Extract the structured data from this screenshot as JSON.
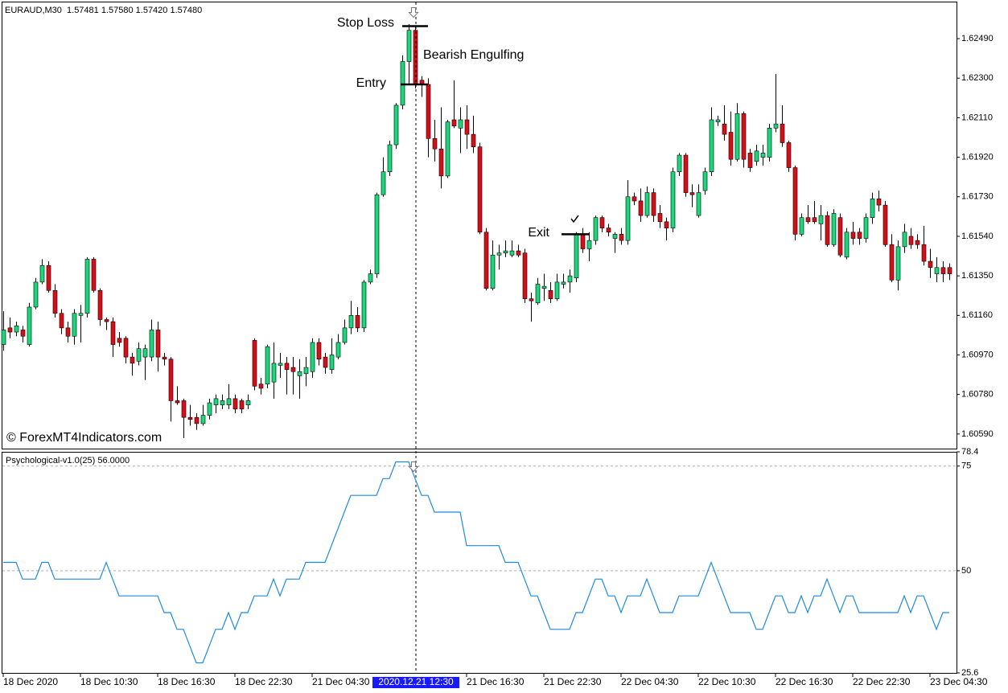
{
  "chart_data": [
    {
      "type": "candlestick",
      "header": "EURAUD,M30  1.57481 1.57580 1.57420 1.57480",
      "watermark": "© ForexMT4Indicators.com",
      "up_color": "#1ed67c",
      "down_color": "#d4111b",
      "ylim": [
        1.6052,
        1.62664
      ],
      "yticks": [
        {
          "value": 1.6249,
          "label": "1.62490"
        },
        {
          "value": 1.623,
          "label": "1.62300"
        },
        {
          "value": 1.6211,
          "label": "1.62110"
        },
        {
          "value": 1.6192,
          "label": "1.61920"
        },
        {
          "value": 1.6173,
          "label": "1.61730"
        },
        {
          "value": 1.6154,
          "label": "1.61540"
        },
        {
          "value": 1.6135,
          "label": "1.61350"
        },
        {
          "value": 1.6116,
          "label": "1.61160"
        },
        {
          "value": 1.6097,
          "label": "1.60970"
        },
        {
          "value": 1.6078,
          "label": "1.60780"
        },
        {
          "value": 1.6059,
          "label": "1.60590"
        }
      ],
      "crosshair": "2020.12.21 12:30",
      "annotations": [
        {
          "text": "Stop Loss",
          "value": 1.6255
        },
        {
          "text": "Bearish Engulfing"
        },
        {
          "text": "Entry",
          "value": 1.6227
        },
        {
          "text": "Exit",
          "value": 1.6155
        }
      ],
      "categories": [
        "18 Dec 2020",
        null,
        null,
        null,
        null,
        null,
        null,
        null,
        null,
        null,
        null,
        null,
        "18 Dec 10:30",
        null,
        null,
        null,
        null,
        null,
        null,
        null,
        null,
        null,
        null,
        null,
        "18 Dec 16:30",
        null,
        null,
        null,
        null,
        null,
        null,
        null,
        null,
        null,
        null,
        null,
        "18 Dec 22:30",
        null,
        null,
        null,
        null,
        null,
        null,
        null,
        null,
        null,
        null,
        null,
        "21 Dec 04:30",
        null,
        null,
        null,
        null,
        null,
        null,
        null,
        null,
        null,
        null,
        null,
        null,
        null,
        null,
        null,
        "2020.12.21 12:30",
        null,
        null,
        null,
        null,
        null,
        null,
        null,
        "21 Dec 16:30",
        null,
        null,
        null,
        null,
        null,
        null,
        null,
        null,
        null,
        null,
        null,
        "21 Dec 22:30",
        null,
        null,
        null,
        null,
        null,
        null,
        null,
        null,
        null,
        null,
        null,
        "22 Dec 04:30",
        null,
        null,
        null,
        null,
        null,
        null,
        null,
        null,
        null,
        null,
        null,
        "22 Dec 10:30",
        null,
        null,
        null,
        null,
        null,
        null,
        null,
        null,
        null,
        null,
        null,
        "22 Dec 16:30",
        null,
        null,
        null,
        null,
        null,
        null,
        null,
        null,
        null,
        null,
        null,
        "22 Dec 22:30",
        null,
        null,
        null,
        null,
        null,
        null,
        null,
        null,
        null,
        null,
        null,
        "23 Dec 04:30",
        null,
        null,
        null
      ],
      "values": [
        [
          1.6102,
          1.6118,
          1.6099,
          1.6109
        ],
        [
          1.611,
          1.6115,
          1.6105,
          1.6108
        ],
        [
          1.6108,
          1.6113,
          1.6106,
          1.6111
        ],
        [
          1.6109,
          1.6111,
          1.6103,
          1.6106
        ],
        [
          1.6102,
          1.6122,
          1.6101,
          1.612
        ],
        [
          1.612,
          1.6134,
          1.6119,
          1.6132
        ],
        [
          1.6132,
          1.6143,
          1.6131,
          1.614
        ],
        [
          1.614,
          1.6142,
          1.6127,
          1.6128
        ],
        [
          1.6128,
          1.6131,
          1.6115,
          1.6117
        ],
        [
          1.6117,
          1.6119,
          1.6107,
          1.611
        ],
        [
          1.611,
          1.6113,
          1.6103,
          1.6106
        ],
        [
          1.6106,
          1.6119,
          1.6102,
          1.6117
        ],
        [
          1.6116,
          1.6121,
          1.6103,
          1.6117
        ],
        [
          1.6117,
          1.6144,
          1.6115,
          1.6143
        ],
        [
          1.6143,
          1.6144,
          1.6127,
          1.6128
        ],
        [
          1.6128,
          1.6129,
          1.6111,
          1.6114
        ],
        [
          1.6114,
          1.6115,
          1.6109,
          1.6113
        ],
        [
          1.6113,
          1.6115,
          1.6096,
          1.6102
        ],
        [
          1.6105,
          1.6108,
          1.6101,
          1.6103
        ],
        [
          1.6105,
          1.6106,
          1.6093,
          1.6096
        ],
        [
          1.6096,
          1.6098,
          1.6087,
          1.6093
        ],
        [
          1.6094,
          1.6103,
          1.6092,
          1.61
        ],
        [
          1.6096,
          1.6102,
          1.6085,
          1.61
        ],
        [
          1.6096,
          1.6114,
          1.6094,
          1.6109
        ],
        [
          1.6109,
          1.6113,
          1.6089,
          1.6096
        ],
        [
          1.6096,
          1.6098,
          1.6092,
          1.6095
        ],
        [
          1.6095,
          1.6096,
          1.6065,
          1.6075
        ],
        [
          1.6075,
          1.6082,
          1.6073,
          1.6074
        ],
        [
          1.6075,
          1.6076,
          1.6057,
          1.6067
        ],
        [
          1.6067,
          1.6073,
          1.6063,
          1.6066
        ],
        [
          1.6067,
          1.6069,
          1.6061,
          1.6064
        ],
        [
          1.6064,
          1.6073,
          1.6063,
          1.6068
        ],
        [
          1.6068,
          1.6076,
          1.6066,
          1.6074
        ],
        [
          1.6073,
          1.6078,
          1.6069,
          1.6076
        ],
        [
          1.6073,
          1.6078,
          1.6071,
          1.6075
        ],
        [
          1.6073,
          1.6083,
          1.6071,
          1.6076
        ],
        [
          1.6076,
          1.6078,
          1.6069,
          1.6071
        ],
        [
          1.6075,
          1.6076,
          1.6069,
          1.6071
        ],
        [
          1.6073,
          1.6078,
          1.6071,
          1.6075
        ],
        [
          1.6104,
          1.6105,
          1.608,
          1.6082
        ],
        [
          1.6083,
          1.6086,
          1.6078,
          1.6081
        ],
        [
          1.6083,
          1.6102,
          1.6081,
          1.6101
        ],
        [
          1.6084,
          1.6103,
          1.6076,
          1.6093
        ],
        [
          1.6092,
          1.6098,
          1.6086,
          1.6093
        ],
        [
          1.6093,
          1.6096,
          1.6078,
          1.609
        ],
        [
          1.6091,
          1.6096,
          1.6078,
          1.6089
        ],
        [
          1.6087,
          1.6095,
          1.6076,
          1.6089
        ],
        [
          1.6088,
          1.6096,
          1.6082,
          1.6091
        ],
        [
          1.6089,
          1.6105,
          1.6086,
          1.6103
        ],
        [
          1.6103,
          1.6105,
          1.6092,
          1.6095
        ],
        [
          1.6096,
          1.6098,
          1.6088,
          1.6091
        ],
        [
          1.609,
          1.6105,
          1.6088,
          1.6097
        ],
        [
          1.6096,
          1.6107,
          1.6095,
          1.6103
        ],
        [
          1.6103,
          1.6114,
          1.6102,
          1.611
        ],
        [
          1.611,
          1.6123,
          1.6107,
          1.6116
        ],
        [
          1.6116,
          1.612,
          1.6108,
          1.611
        ],
        [
          1.611,
          1.6133,
          1.6108,
          1.6132
        ],
        [
          1.6132,
          1.6138,
          1.6131,
          1.6136
        ],
        [
          1.6136,
          1.6175,
          1.6134,
          1.6174
        ],
        [
          1.6174,
          1.6192,
          1.6173,
          1.6185
        ],
        [
          1.6185,
          1.62,
          1.6183,
          1.6198
        ],
        [
          1.6198,
          1.6218,
          1.6196,
          1.6217
        ],
        [
          1.6217,
          1.6241,
          1.6215,
          1.6238
        ],
        [
          1.6238,
          1.6256,
          1.6227,
          1.6253
        ],
        [
          1.6253,
          1.6255,
          1.6225,
          1.6227
        ],
        [
          1.6229,
          1.6231,
          1.6221,
          1.6227
        ],
        [
          1.6227,
          1.623,
          1.6192,
          1.6201
        ],
        [
          1.6201,
          1.621,
          1.619,
          1.6196
        ],
        [
          1.6196,
          1.6216,
          1.6177,
          1.6183
        ],
        [
          1.6183,
          1.621,
          1.6182,
          1.6209
        ],
        [
          1.621,
          1.6229,
          1.6206,
          1.6207
        ],
        [
          1.6206,
          1.6216,
          1.6194,
          1.621
        ],
        [
          1.621,
          1.6217,
          1.6196,
          1.6203
        ],
        [
          1.6203,
          1.6212,
          1.6194,
          1.6197
        ],
        [
          1.6197,
          1.6199,
          1.6155,
          1.6156
        ],
        [
          1.6156,
          1.6158,
          1.6128,
          1.6129
        ],
        [
          1.6129,
          1.6152,
          1.6128,
          1.6145
        ],
        [
          1.6145,
          1.615,
          1.6138,
          1.6146
        ],
        [
          1.6146,
          1.6152,
          1.6144,
          1.6147
        ],
        [
          1.6145,
          1.6152,
          1.6144,
          1.6147
        ],
        [
          1.6147,
          1.615,
          1.6144,
          1.6145
        ],
        [
          1.6146,
          1.6148,
          1.6122,
          1.6124
        ],
        [
          1.6124,
          1.6127,
          1.6113,
          1.6123
        ],
        [
          1.6122,
          1.6134,
          1.6121,
          1.6131
        ],
        [
          1.6129,
          1.6136,
          1.6123,
          1.613
        ],
        [
          1.6128,
          1.6132,
          1.6122,
          1.6124
        ],
        [
          1.6124,
          1.6136,
          1.6123,
          1.6132
        ],
        [
          1.6131,
          1.6136,
          1.6129,
          1.6132
        ],
        [
          1.6132,
          1.6138,
          1.6127,
          1.6135
        ],
        [
          1.6134,
          1.6156,
          1.6132,
          1.6155
        ],
        [
          1.6155,
          1.6158,
          1.6146,
          1.6148
        ],
        [
          1.6148,
          1.6156,
          1.6142,
          1.6152
        ],
        [
          1.6152,
          1.6164,
          1.615,
          1.6163
        ],
        [
          1.6163,
          1.6164,
          1.6156,
          1.6158
        ],
        [
          1.6158,
          1.616,
          1.6154,
          1.6156
        ],
        [
          1.6153,
          1.6156,
          1.6146,
          1.6155
        ],
        [
          1.6155,
          1.6158,
          1.615,
          1.6152
        ],
        [
          1.6152,
          1.6181,
          1.615,
          1.6173
        ],
        [
          1.6173,
          1.6175,
          1.6169,
          1.6171
        ],
        [
          1.6171,
          1.6177,
          1.6161,
          1.6164
        ],
        [
          1.6164,
          1.6178,
          1.6163,
          1.6175
        ],
        [
          1.6175,
          1.6177,
          1.6161,
          1.6164
        ],
        [
          1.6165,
          1.6169,
          1.6158,
          1.6161
        ],
        [
          1.6161,
          1.6163,
          1.6152,
          1.6158
        ],
        [
          1.6158,
          1.6187,
          1.6156,
          1.6185
        ],
        [
          1.6185,
          1.6194,
          1.6183,
          1.6193
        ],
        [
          1.6193,
          1.6194,
          1.6173,
          1.6175
        ],
        [
          1.6175,
          1.6179,
          1.6168,
          1.6174
        ],
        [
          1.6164,
          1.6179,
          1.6163,
          1.6175
        ],
        [
          1.6176,
          1.6187,
          1.6174,
          1.6185
        ],
        [
          1.6185,
          1.6216,
          1.6183,
          1.621
        ],
        [
          1.6209,
          1.6212,
          1.6207,
          1.621
        ],
        [
          1.6208,
          1.6217,
          1.62,
          1.6203
        ],
        [
          1.6204,
          1.6214,
          1.6188,
          1.6191
        ],
        [
          1.6191,
          1.6218,
          1.619,
          1.6213
        ],
        [
          1.6213,
          1.6214,
          1.6187,
          1.6191
        ],
        [
          1.6194,
          1.6196,
          1.6185,
          1.6187
        ],
        [
          1.619,
          1.6198,
          1.6188,
          1.6195
        ],
        [
          1.6192,
          1.6198,
          1.6188,
          1.6194
        ],
        [
          1.6192,
          1.6208,
          1.619,
          1.6206
        ],
        [
          1.6206,
          1.6232,
          1.6204,
          1.6208
        ],
        [
          1.6208,
          1.6217,
          1.6197,
          1.6199
        ],
        [
          1.6199,
          1.62,
          1.6185,
          1.6187
        ],
        [
          1.6187,
          1.6188,
          1.6152,
          1.6155
        ],
        [
          1.6155,
          1.6165,
          1.6154,
          1.6163
        ],
        [
          1.6163,
          1.6169,
          1.616,
          1.6161
        ],
        [
          1.6163,
          1.6171,
          1.616,
          1.6161
        ],
        [
          1.616,
          1.6169,
          1.6152,
          1.6164
        ],
        [
          1.6164,
          1.6166,
          1.6149,
          1.615
        ],
        [
          1.615,
          1.6167,
          1.6149,
          1.6165
        ],
        [
          1.6163,
          1.6165,
          1.6144,
          1.6145
        ],
        [
          1.6144,
          1.6158,
          1.6143,
          1.6156
        ],
        [
          1.6156,
          1.6161,
          1.615,
          1.6153
        ],
        [
          1.6156,
          1.6158,
          1.615,
          1.6153
        ],
        [
          1.6153,
          1.6165,
          1.6151,
          1.6163
        ],
        [
          1.6163,
          1.6175,
          1.616,
          1.6172
        ],
        [
          1.6172,
          1.6176,
          1.6166,
          1.6169
        ],
        [
          1.6169,
          1.6171,
          1.6149,
          1.615
        ],
        [
          1.615,
          1.6155,
          1.6132,
          1.6133
        ],
        [
          1.6133,
          1.6152,
          1.6128,
          1.6149
        ],
        [
          1.6149,
          1.616,
          1.6146,
          1.6156
        ],
        [
          1.6154,
          1.6158,
          1.6148,
          1.615
        ],
        [
          1.6152,
          1.6155,
          1.6148,
          1.615
        ],
        [
          1.615,
          1.6159,
          1.614,
          1.6142
        ],
        [
          1.6142,
          1.6148,
          1.6134,
          1.6139
        ],
        [
          1.6136,
          1.6144,
          1.6132,
          1.6139
        ],
        [
          1.6139,
          1.6142,
          1.6132,
          1.6136
        ],
        [
          1.6139,
          1.6141,
          1.6133,
          1.6136
        ]
      ]
    },
    {
      "type": "line",
      "title": "Psychological-v1.0(25) 56.0000",
      "color": "#1e88e5",
      "ylim": [
        25.6,
        78.4
      ],
      "yticks": [
        78.4,
        75,
        50,
        25.6
      ],
      "grid": true,
      "values": [
        52,
        52,
        52,
        48,
        48,
        48,
        52,
        52,
        48,
        48,
        48,
        48,
        48,
        48,
        48,
        48,
        52,
        48,
        44,
        44,
        44,
        44,
        44,
        44,
        44,
        40,
        40,
        36,
        36,
        32,
        28,
        28,
        32,
        36,
        36,
        40,
        36,
        40,
        40,
        44,
        44,
        44,
        48,
        44,
        48,
        48,
        48,
        52,
        52,
        52,
        52,
        56,
        60,
        64,
        68,
        68,
        68,
        68,
        68,
        72,
        72,
        76,
        76,
        76,
        72,
        68,
        68,
        64,
        64,
        64,
        64,
        64,
        56,
        56,
        56,
        56,
        56,
        56,
        52,
        52,
        52,
        48,
        44,
        44,
        40,
        36,
        36,
        36,
        36,
        40,
        40,
        44,
        48,
        48,
        44,
        44,
        40,
        44,
        44,
        44,
        48,
        44,
        40,
        40,
        40,
        44,
        44,
        44,
        44,
        48,
        52,
        48,
        44,
        40,
        40,
        40,
        40,
        36,
        36,
        40,
        44,
        44,
        40,
        40,
        44,
        40,
        44,
        44,
        48,
        44,
        40,
        44,
        44,
        40,
        40,
        40,
        40,
        40,
        40,
        40,
        44,
        40,
        44,
        44,
        40,
        36,
        40,
        40
      ]
    }
  ]
}
